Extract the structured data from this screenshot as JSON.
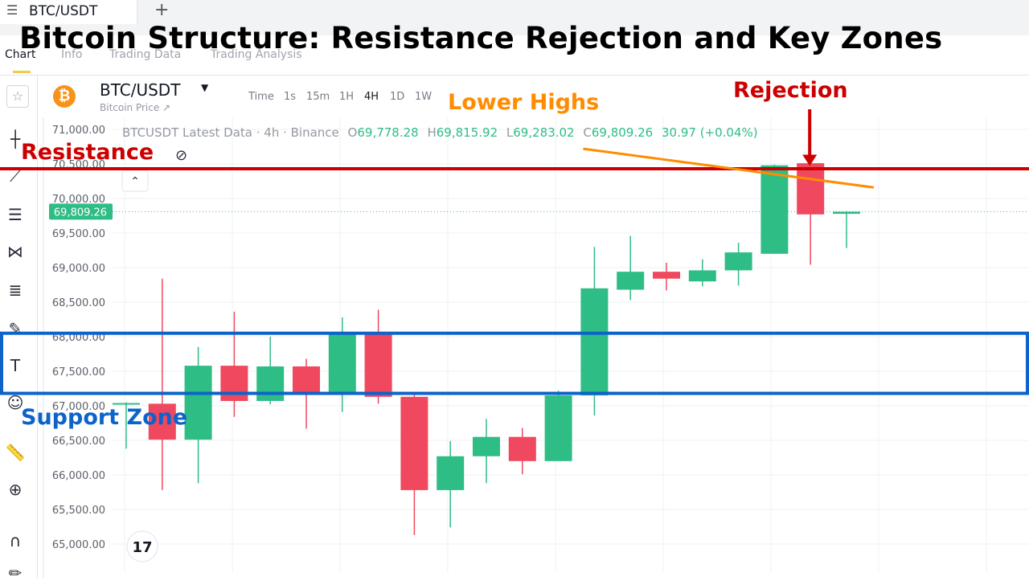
{
  "app": {
    "tab_symbol": "BTC/USDT",
    "tab_list_icon": "list-icon",
    "tab_add_icon": "plus-icon"
  },
  "headline": "Bitcoin Structure: Resistance Rejection and Key Zones",
  "subtabs": [
    "Chart",
    "Info",
    "Trading Data",
    "Trading Analysis"
  ],
  "symbol": {
    "name": "BTC/USDT",
    "subtitle": "Bitcoin Price ↗",
    "coin_icon": "bitcoin-icon",
    "timeframes": [
      "Time",
      "1s",
      "15m",
      "1H",
      "4H",
      "1D",
      "1W"
    ],
    "active_timeframe": "4H"
  },
  "legend": {
    "title": "BTCUSDT Latest Data · 4h · Binance",
    "o_label": "O",
    "o_value": "69,778.28",
    "h_label": "H",
    "h_value": "69,815.92",
    "l_label": "L",
    "l_value": "69,283.02",
    "c_label": "C",
    "c_value": "69,809.26",
    "change": "30.97 (+0.04%)"
  },
  "colors": {
    "up": "#2fbd86",
    "down": "#f0485e",
    "resistance": "#cc0000",
    "support": "#0d63c9",
    "trend": "#ff8c00",
    "grid": "#eef0f3"
  },
  "chart_data": {
    "type": "candlestick",
    "title": "Bitcoin Structure: Resistance Rejection and Key Zones",
    "ylim": [
      64700,
      71150
    ],
    "yticks": [
      71000,
      70500,
      70000,
      69500,
      69000,
      68500,
      68000,
      67500,
      67000,
      66500,
      66000,
      65500,
      65000
    ],
    "ytick_labels": [
      "71,000.00",
      "70,500.00",
      "70,000.00",
      "69,500.00",
      "69,000.00",
      "68,500.00",
      "68,000.00",
      "67,500.00",
      "67,000.00",
      "66,500.00",
      "66,000.00",
      "65,500.00",
      "65,000.00"
    ],
    "last_price": 69809.26,
    "last_price_label": "69,809.26",
    "candles": [
      {
        "o": 67030,
        "h": 67050,
        "l": 66380,
        "c": 67040
      },
      {
        "o": 67030,
        "h": 68840,
        "l": 65780,
        "c": 66510
      },
      {
        "o": 66510,
        "h": 67850,
        "l": 65880,
        "c": 67580
      },
      {
        "o": 67580,
        "h": 68360,
        "l": 66840,
        "c": 67070
      },
      {
        "o": 67070,
        "h": 68000,
        "l": 67020,
        "c": 67570
      },
      {
        "o": 67570,
        "h": 67680,
        "l": 66670,
        "c": 67200
      },
      {
        "o": 67200,
        "h": 68280,
        "l": 66910,
        "c": 68070
      },
      {
        "o": 68070,
        "h": 68390,
        "l": 67030,
        "c": 67130
      },
      {
        "o": 67130,
        "h": 67180,
        "l": 65130,
        "c": 65780
      },
      {
        "o": 65780,
        "h": 66490,
        "l": 65240,
        "c": 66270
      },
      {
        "o": 66270,
        "h": 66810,
        "l": 65880,
        "c": 66550
      },
      {
        "o": 66550,
        "h": 66680,
        "l": 66010,
        "c": 66200
      },
      {
        "o": 66200,
        "h": 67220,
        "l": 66200,
        "c": 67150
      },
      {
        "o": 67150,
        "h": 69300,
        "l": 66860,
        "c": 68700
      },
      {
        "o": 68680,
        "h": 69460,
        "l": 68530,
        "c": 68940
      },
      {
        "o": 68940,
        "h": 69070,
        "l": 68670,
        "c": 68840
      },
      {
        "o": 68800,
        "h": 69120,
        "l": 68730,
        "c": 68960
      },
      {
        "o": 68960,
        "h": 69360,
        "l": 68740,
        "c": 69220
      },
      {
        "o": 69200,
        "h": 70490,
        "l": 69200,
        "c": 70480
      },
      {
        "o": 70510,
        "h": 70540,
        "l": 69040,
        "c": 69770
      },
      {
        "o": 69778.28,
        "h": 69815.92,
        "l": 69283.02,
        "c": 69809.26
      }
    ],
    "annotations": {
      "resistance": {
        "label": "Resistance",
        "price": 70430
      },
      "support_zone": {
        "label": "Support Zone",
        "price_top": 68050,
        "price_bottom": 67180
      },
      "lower_highs": {
        "label": "Lower Highs",
        "from": {
          "candle": 13,
          "price": 70720
        },
        "to": {
          "candle": 21,
          "price": 70160
        }
      },
      "rejection": {
        "label": "Rejection",
        "candle": 19
      }
    }
  }
}
